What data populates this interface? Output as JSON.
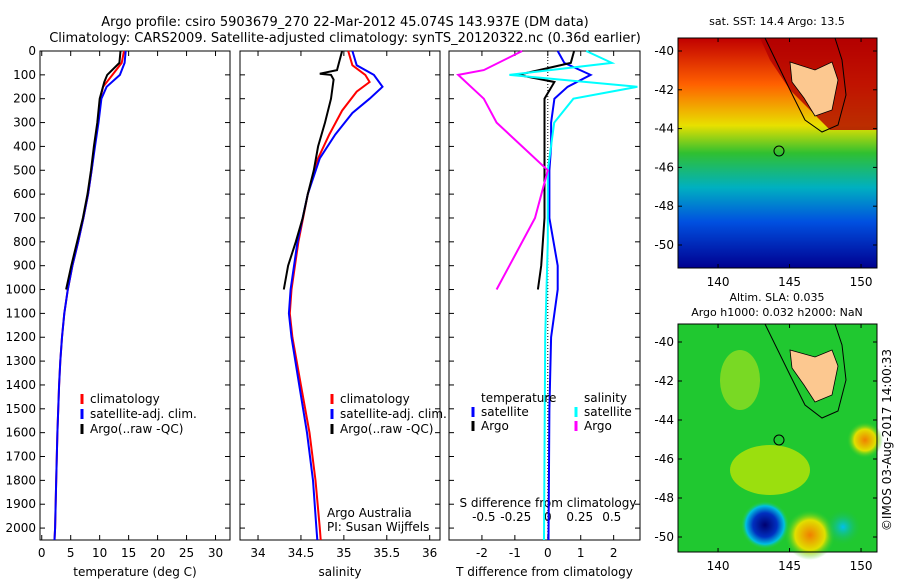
{
  "title_line1": "Argo profile: csiro 5903679_270 22-Mar-2012 45.074S 143.937E (DM data)",
  "title_line2": "Climatology: CARS2009. Satellite-adjusted climatology: synTS_20120322.nc (0.36d earlier)",
  "colors": {
    "climatology": "#ff0000",
    "satellite": "#0000ff",
    "argo": "#000000",
    "sal_satellite": "#00ffff",
    "sal_argo": "#ff00ff"
  },
  "chart_data": [
    {
      "type": "line",
      "name": "temperature",
      "xlabel": "temperature (deg C)",
      "ylabel": "",
      "xlim": [
        -0.3,
        32.5
      ],
      "ylim": [
        2050,
        0
      ],
      "xticks": [
        "0",
        "5",
        "10",
        "15",
        "20",
        "25",
        "30"
      ],
      "yticks": [
        "0",
        "100",
        "200",
        "300",
        "400",
        "500",
        "600",
        "700",
        "800",
        "900",
        "1000",
        "1100",
        "1200",
        "1300",
        "1400",
        "1500",
        "1600",
        "1700",
        "1800",
        "1900",
        "2000"
      ],
      "legend": [
        "climatology",
        "satellite-adj. clim.",
        "Argo(..raw -QC)"
      ],
      "series": [
        {
          "name": "climatology",
          "points": [
            [
              0,
              14.2
            ],
            [
              50,
              13.8
            ],
            [
              100,
              12.2
            ],
            [
              150,
              10.6
            ],
            [
              200,
              10.1
            ],
            [
              300,
              9.7
            ],
            [
              400,
              9.1
            ],
            [
              500,
              8.6
            ],
            [
              600,
              8.0
            ],
            [
              700,
              7.2
            ],
            [
              800,
              6.3
            ],
            [
              900,
              5.3
            ],
            [
              1000,
              4.5
            ],
            [
              1100,
              3.9
            ],
            [
              1200,
              3.5
            ],
            [
              1300,
              3.2
            ],
            [
              1400,
              3.0
            ],
            [
              1600,
              2.7
            ],
            [
              1800,
              2.5
            ],
            [
              2000,
              2.3
            ],
            [
              2050,
              2.2
            ]
          ]
        },
        {
          "name": "satellite-adj. clim.",
          "points": [
            [
              0,
              14.5
            ],
            [
              50,
              14.3
            ],
            [
              100,
              13.5
            ],
            [
              150,
              11.2
            ],
            [
              200,
              10.3
            ],
            [
              300,
              9.8
            ],
            [
              400,
              9.2
            ],
            [
              500,
              8.6
            ],
            [
              600,
              8.0
            ],
            [
              700,
              7.2
            ],
            [
              800,
              6.3
            ],
            [
              900,
              5.3
            ],
            [
              1000,
              4.5
            ],
            [
              1100,
              3.9
            ],
            [
              1200,
              3.5
            ],
            [
              1300,
              3.2
            ],
            [
              1400,
              3.0
            ],
            [
              1600,
              2.7
            ],
            [
              1800,
              2.5
            ],
            [
              2000,
              2.3
            ],
            [
              2050,
              2.2
            ]
          ]
        },
        {
          "name": "Argo(..raw -QC)",
          "points": [
            [
              0,
              13.6
            ],
            [
              50,
              13.4
            ],
            [
              100,
              11.3
            ],
            [
              130,
              10.8
            ],
            [
              200,
              10.0
            ],
            [
              300,
              9.6
            ],
            [
              400,
              9.0
            ],
            [
              500,
              8.5
            ],
            [
              600,
              7.9
            ],
            [
              700,
              7.1
            ],
            [
              800,
              6.1
            ],
            [
              900,
              5.1
            ],
            [
              1000,
              4.2
            ]
          ]
        }
      ]
    },
    {
      "type": "line",
      "name": "salinity",
      "xlabel": "salinity",
      "xlim": [
        33.79,
        36.12
      ],
      "ylim": [
        2050,
        0
      ],
      "xticks": [
        "34",
        "34.5",
        "35",
        "35.5",
        "36"
      ],
      "legend": [
        "climatology",
        "satellite-adj. clim.",
        "Argo(..raw -QC)"
      ],
      "annotation": [
        "Argo Australia",
        "PI: Susan Wijffels"
      ],
      "series": [
        {
          "name": "climatology",
          "points": [
            [
              0,
              35.05
            ],
            [
              60,
              35.1
            ],
            [
              100,
              35.25
            ],
            [
              130,
              35.3
            ],
            [
              170,
              35.15
            ],
            [
              250,
              34.98
            ],
            [
              350,
              34.83
            ],
            [
              450,
              34.7
            ],
            [
              600,
              34.58
            ],
            [
              800,
              34.47
            ],
            [
              1000,
              34.39
            ],
            [
              1100,
              34.37
            ],
            [
              1200,
              34.4
            ],
            [
              1400,
              34.5
            ],
            [
              1600,
              34.6
            ],
            [
              1800,
              34.67
            ],
            [
              2000,
              34.72
            ],
            [
              2050,
              34.73
            ]
          ]
        },
        {
          "name": "satellite-adj. clim.",
          "points": [
            [
              0,
              35.1
            ],
            [
              60,
              35.15
            ],
            [
              100,
              35.35
            ],
            [
              150,
              35.45
            ],
            [
              200,
              35.3
            ],
            [
              260,
              35.1
            ],
            [
              350,
              34.9
            ],
            [
              450,
              34.72
            ],
            [
              600,
              34.58
            ],
            [
              800,
              34.46
            ],
            [
              1000,
              34.38
            ],
            [
              1100,
              34.36
            ],
            [
              1200,
              34.39
            ],
            [
              1400,
              34.48
            ],
            [
              1600,
              34.57
            ],
            [
              1800,
              34.64
            ],
            [
              2000,
              34.68
            ],
            [
              2050,
              34.69
            ]
          ]
        },
        {
          "name": "Argo(..raw -QC)",
          "points": [
            [
              0,
              34.98
            ],
            [
              80,
              34.92
            ],
            [
              95,
              34.72
            ],
            [
              100,
              34.85
            ],
            [
              120,
              34.88
            ],
            [
              200,
              34.85
            ],
            [
              300,
              34.78
            ],
            [
              400,
              34.7
            ],
            [
              500,
              34.65
            ],
            [
              600,
              34.58
            ],
            [
              700,
              34.52
            ],
            [
              800,
              34.44
            ],
            [
              900,
              34.35
            ],
            [
              1000,
              34.3
            ]
          ]
        }
      ]
    },
    {
      "type": "line",
      "name": "difference",
      "xlabel": "T difference from climatology",
      "xlabel_top": "S difference from climatology",
      "xlim": [
        -3.0,
        2.8
      ],
      "ylim": [
        2050,
        0
      ],
      "xticks": [
        "-2",
        "-1",
        "0",
        "1",
        "2"
      ],
      "xticks_top": [
        "-0.5",
        "-0.25",
        "0",
        "0.25",
        "0.5"
      ],
      "legend_temperature": {
        "title": "temperature",
        "items": [
          "satellite",
          "Argo"
        ]
      },
      "legend_salinity": {
        "title": "salinity",
        "items": [
          "satellite",
          "Argo"
        ]
      },
      "series": [
        {
          "name": "T satellite",
          "points": [
            [
              0,
              0.3
            ],
            [
              50,
              0.5
            ],
            [
              100,
              1.3
            ],
            [
              150,
              0.6
            ],
            [
              200,
              0.2
            ],
            [
              300,
              0.1
            ],
            [
              400,
              0.1
            ],
            [
              500,
              0.05
            ],
            [
              700,
              0.05
            ],
            [
              900,
              0.3
            ],
            [
              1000,
              0.3
            ],
            [
              1200,
              0.1
            ],
            [
              1500,
              0.05
            ],
            [
              2050,
              0.02
            ]
          ]
        },
        {
          "name": "T Argo",
          "points": [
            [
              0,
              0.8
            ],
            [
              50,
              0.7
            ],
            [
              100,
              -0.9
            ],
            [
              130,
              0.2
            ],
            [
              200,
              -0.1
            ],
            [
              300,
              -0.1
            ],
            [
              500,
              -0.1
            ],
            [
              700,
              -0.1
            ],
            [
              900,
              -0.2
            ],
            [
              1000,
              -0.3
            ]
          ]
        },
        {
          "name": "S satellite",
          "points": [
            [
              0,
              0.3
            ],
            [
              50,
              0.5
            ],
            [
              100,
              -0.3
            ],
            [
              150,
              0.7
            ],
            [
              200,
              0.2
            ],
            [
              300,
              0.05
            ],
            [
              500,
              0.0
            ],
            [
              800,
              0.0
            ],
            [
              1200,
              -0.02
            ],
            [
              2050,
              -0.03
            ]
          ]
        },
        {
          "name": "S Argo",
          "points": [
            [
              0,
              -0.2
            ],
            [
              80,
              -0.5
            ],
            [
              100,
              -0.7
            ],
            [
              150,
              -0.6
            ],
            [
              200,
              -0.5
            ],
            [
              300,
              -0.4
            ],
            [
              500,
              0.0
            ],
            [
              700,
              -0.1
            ],
            [
              900,
              -0.3
            ],
            [
              1000,
              -0.4
            ]
          ]
        }
      ]
    }
  ],
  "maps": {
    "sst": {
      "title": "sat. SST: 14.4 Argo: 13.5",
      "xticks": [
        "140",
        "145",
        "150"
      ],
      "yticks": [
        "-40",
        "-42",
        "-44",
        "-46",
        "-48",
        "-50"
      ]
    },
    "sla": {
      "title1": "Altim. SLA: 0.035",
      "title2": "Argo h1000: 0.032 h2000: NaN",
      "xticks": [
        "140",
        "145",
        "150"
      ],
      "yticks": [
        "-40",
        "-42",
        "-44",
        "-46",
        "-48",
        "-50"
      ]
    },
    "float_position": {
      "lon": 143.937,
      "lat": -45.074
    }
  },
  "credit": "©IMOS 03-Aug-2017 14:00:33"
}
